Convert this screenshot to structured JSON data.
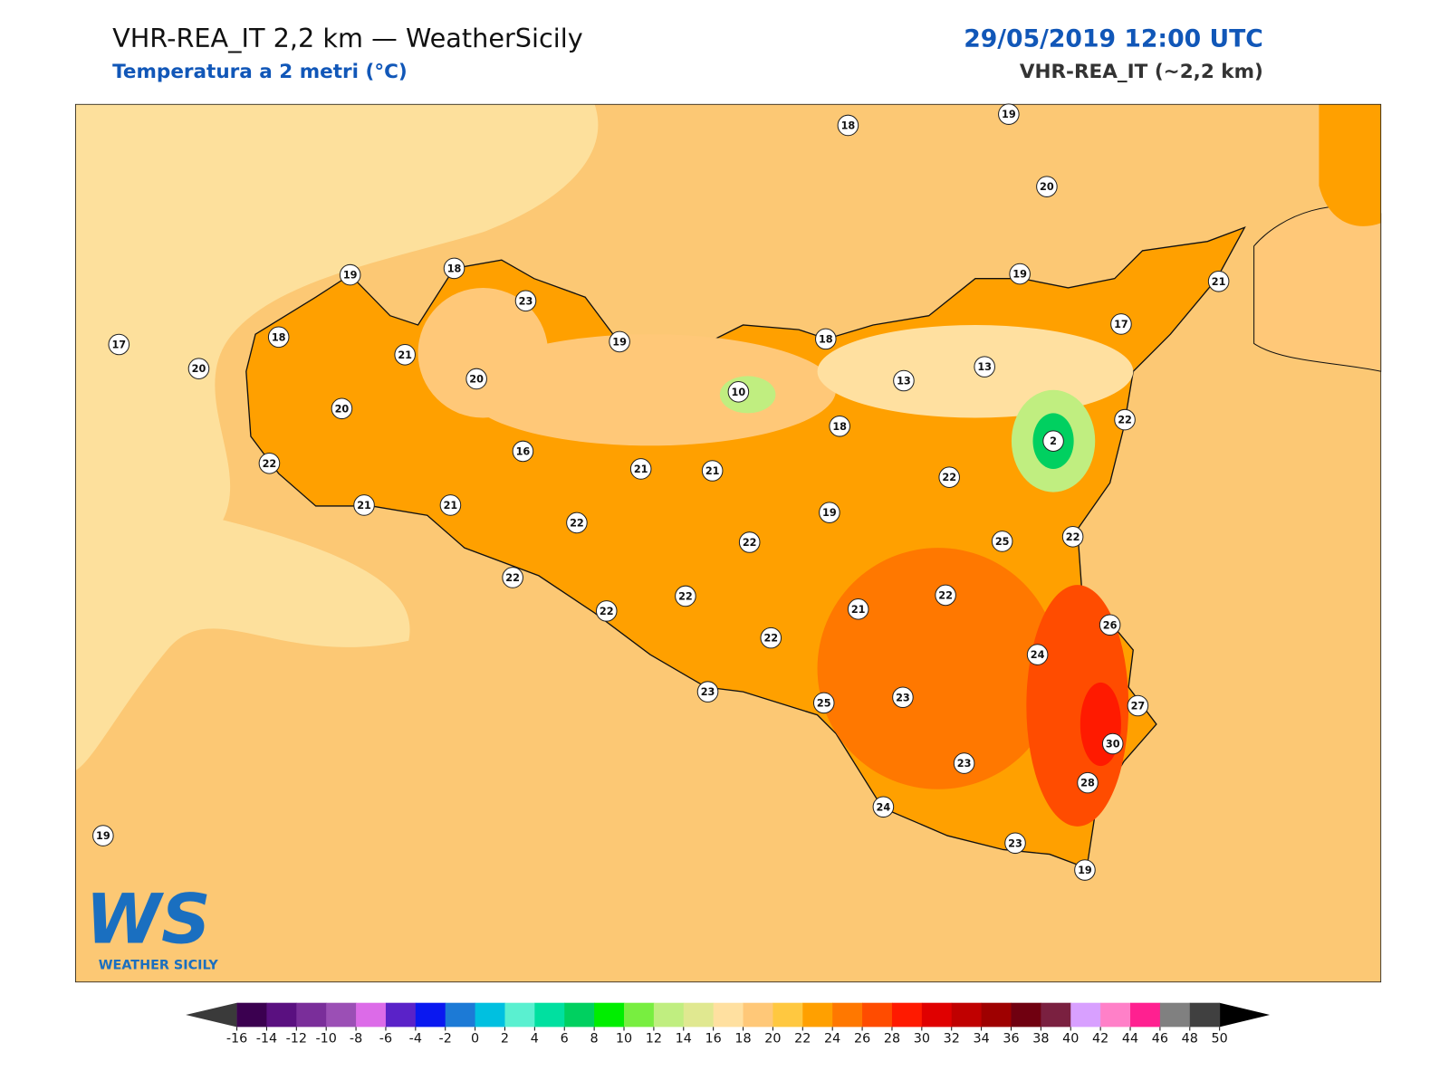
{
  "header": {
    "title": "VHR-REA_IT 2,2 km — WeatherSicily",
    "subtitle": "Temperatura a 2 metri (°C)",
    "date": "29/05/2019 12:00 UTC",
    "model": "VHR-REA_IT (~2,2 km)"
  },
  "station_values": [
    18,
    19,
    20,
    19,
    18,
    23,
    19,
    21,
    17,
    18,
    20,
    21,
    19,
    18,
    17,
    20,
    10,
    13,
    13,
    20,
    18,
    2,
    22,
    22,
    16,
    21,
    21,
    22,
    21,
    21,
    19,
    22,
    22,
    25,
    22,
    22,
    22,
    22,
    22,
    21,
    22,
    26,
    24,
    23,
    25,
    23,
    27,
    30,
    23,
    28,
    24,
    19,
    23,
    19
  ],
  "colorbar": {
    "ticks": [
      -16,
      -14,
      -12,
      -10,
      -8,
      -6,
      -4,
      -2,
      0,
      2,
      4,
      6,
      8,
      10,
      12,
      14,
      16,
      18,
      20,
      22,
      24,
      26,
      28,
      30,
      32,
      34,
      36,
      38,
      40,
      42,
      44,
      46,
      48,
      50
    ],
    "colors": [
      "#3b0050",
      "#5a1080",
      "#7a2e9a",
      "#9b4fb5",
      "#dc6be8",
      "#5a22c8",
      "#0a18f0",
      "#1c7ad6",
      "#00c0e0",
      "#5af0d0",
      "#00e0a0",
      "#00d060",
      "#00ee00",
      "#78ee40",
      "#c0ee80",
      "#e0e890",
      "#ffe0a0",
      "#ffc878",
      "#ffc840",
      "#ffa000",
      "#ff7800",
      "#ff4c00",
      "#ff1a00",
      "#e00000",
      "#c00000",
      "#9e0000",
      "#700010",
      "#7a2040",
      "#d8a0ff",
      "#ff80c8",
      "#ff2090",
      "#808080",
      "#404040"
    ],
    "under_color": "#3a3a3a",
    "over_color": "#000000"
  },
  "logo": {
    "mark": "WS",
    "caption": "WEATHER SICILY"
  }
}
